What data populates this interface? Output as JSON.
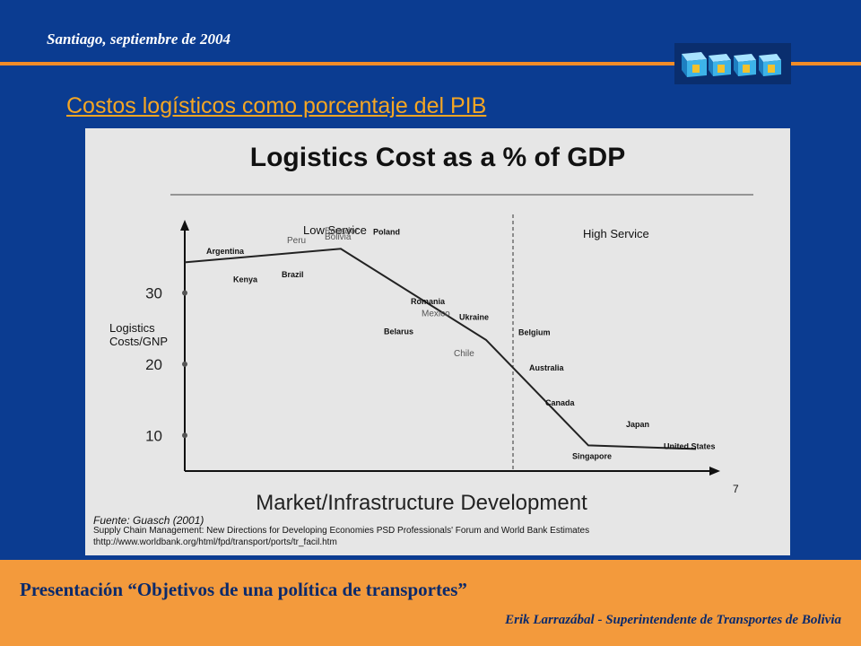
{
  "header": {
    "date": "Santiago, septiembre de 2004"
  },
  "slide_title": "Costos logísticos como porcentaje del PIB",
  "figure": {
    "title": "Logistics Cost as a % of GDP",
    "segment_low": "Low Service",
    "segment_high": "High Service",
    "ylabel_line1": "Logistics",
    "ylabel_line2": "Costs/GNP",
    "xlabel": "Market/Infrastructure Development",
    "page_number": "7",
    "source": "Fuente:  Guasch (2001)",
    "citation_line1": "Supply Chain Management: New Directions for Developing Economies PSD Professionals' Forum and World Bank Estimates",
    "citation_line2": "thttp://www.worldbank.org/html/fpd/transport/ports/tr_facil.htm"
  },
  "chart_data": {
    "type": "line",
    "title": "Logistics Cost as a % of GDP",
    "xlabel": "Market/Infrastructure Development",
    "ylabel": "Logistics Costs/GNP",
    "yticks": [
      "30",
      "20",
      "10"
    ],
    "y_tick_values": [
      30,
      20,
      10
    ],
    "ylim": [
      5,
      38
    ],
    "xlim": [
      0,
      100
    ],
    "divider_x": 61,
    "line_points": [
      {
        "x": 0,
        "y": 34.3
      },
      {
        "x": 29,
        "y": 36.2
      },
      {
        "x": 56,
        "y": 23.4
      },
      {
        "x": 75,
        "y": 8.6
      },
      {
        "x": 95,
        "y": 8.1
      }
    ],
    "labels": [
      {
        "text": "Argentina",
        "x": 4,
        "y": 35.5,
        "bold": true
      },
      {
        "text": "Peru",
        "x": 19,
        "y": 37,
        "bold": false
      },
      {
        "text": "Ecuador",
        "x": 26,
        "y": 38.3,
        "bold": false
      },
      {
        "text": "Bolivia",
        "x": 26,
        "y": 37.5,
        "bold": false
      },
      {
        "text": "Poland",
        "x": 35,
        "y": 38.2,
        "bold": true
      },
      {
        "text": "Kenya",
        "x": 9,
        "y": 31.5,
        "bold": true
      },
      {
        "text": "Brazil",
        "x": 18,
        "y": 32.2,
        "bold": true
      },
      {
        "text": "Romania",
        "x": 42,
        "y": 28.4,
        "bold": true
      },
      {
        "text": "Mexico",
        "x": 44,
        "y": 26.7,
        "bold": false
      },
      {
        "text": "Ukraine",
        "x": 51,
        "y": 26.2,
        "bold": true
      },
      {
        "text": "Belarus",
        "x": 37,
        "y": 24.2,
        "bold": true
      },
      {
        "text": "Belgium",
        "x": 62,
        "y": 24.1,
        "bold": true
      },
      {
        "text": "Chile",
        "x": 50,
        "y": 21.1,
        "bold": false
      },
      {
        "text": "Australia",
        "x": 64,
        "y": 19.1,
        "bold": true
      },
      {
        "text": "Canada",
        "x": 67,
        "y": 14.2,
        "bold": true
      },
      {
        "text": "Japan",
        "x": 82,
        "y": 11.2,
        "bold": true
      },
      {
        "text": "Singapore",
        "x": 72,
        "y": 6.7,
        "bold": true
      },
      {
        "text": "United States",
        "x": 89,
        "y": 8.1,
        "bold": true
      }
    ]
  },
  "footer": {
    "title": "Presentación “Objetivos de una política de transportes”",
    "author": "Erik Larrazábal  - Superintendente de Transportes de Bolivia"
  },
  "colors": {
    "background": "#0b3c91",
    "accent_orange": "#f39a3c",
    "title_color": "#f5a623",
    "footer_text": "#0b2a6b",
    "logo_cube": "#3db3e8"
  },
  "logo": {
    "icon": "cube-letters-logo-icon"
  }
}
